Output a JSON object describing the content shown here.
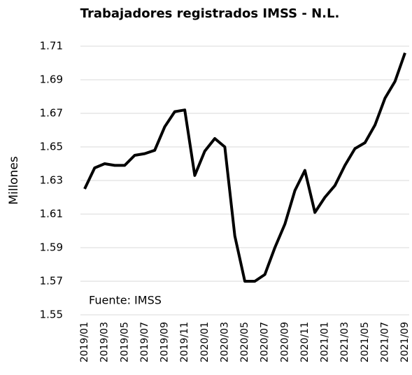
{
  "chart_data": {
    "type": "line",
    "title": "Trabajadores registrados IMSS - N.L.",
    "y_label": "Millones",
    "annotation": "Fuente: IMSS",
    "categories": [
      "2019/01",
      null,
      "2019/03",
      null,
      "2019/05",
      null,
      "2019/07",
      null,
      "2019/09",
      null,
      "2019/11",
      null,
      "2020/01",
      null,
      "2020/03",
      null,
      "2020/05",
      null,
      "2020/07",
      null,
      "2020/09",
      null,
      "2020/11",
      null,
      "2021/01",
      null,
      "2021/03",
      null,
      "2021/05",
      null,
      "2021/07",
      null,
      "2021/09"
    ],
    "series": [
      {
        "name": "Trabajadores registrados",
        "color": "#000000",
        "values": [
          1.625,
          1.6375,
          1.64,
          1.639,
          1.639,
          1.645,
          1.646,
          1.648,
          1.662,
          1.671,
          1.672,
          1.633,
          1.6475,
          1.655,
          1.65,
          1.597,
          1.57,
          1.57,
          1.574,
          1.59,
          1.604,
          1.624,
          1.636,
          1.611,
          1.62,
          1.627,
          1.639,
          1.649,
          1.6525,
          1.663,
          1.679,
          1.689,
          1.706
        ]
      }
    ],
    "ylim": [
      1.55,
      1.71
    ],
    "yticks": [
      1.55,
      1.57,
      1.59,
      1.61,
      1.63,
      1.65,
      1.67,
      1.69,
      1.71
    ],
    "grid": true
  }
}
